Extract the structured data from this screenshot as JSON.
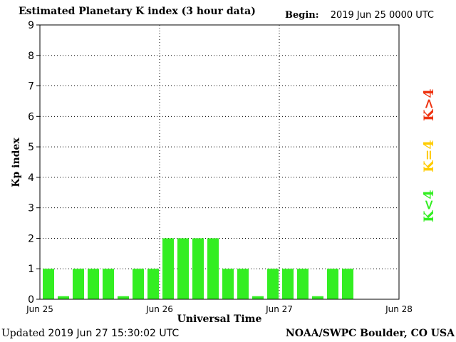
{
  "header": {
    "title": "Estimated Planetary K index (3 hour data)",
    "begin_label": "Begin:",
    "begin_value": "2019 Jun 25 0000 UTC"
  },
  "footer": {
    "updated_label": "Updated",
    "updated_value": "2019 Jun 27 15:30:02 UTC",
    "credit": "NOAA/SWPC Boulder, CO USA"
  },
  "legend": {
    "items": [
      {
        "label": "K<4",
        "color": "#33ee22"
      },
      {
        "label": "K=4",
        "color": "#ffcc00"
      },
      {
        "label": "K>4",
        "color": "#ee3311"
      }
    ]
  },
  "chart_data": {
    "type": "bar",
    "title": "Estimated Planetary K index (3 hour data)",
    "xlabel": "Universal Time",
    "ylabel": "Kp index",
    "ylim": [
      0,
      9
    ],
    "yticks": [
      "0",
      "1",
      "2",
      "3",
      "4",
      "5",
      "6",
      "7",
      "8",
      "9"
    ],
    "xticks": [
      "Jun 25",
      "Jun 26",
      "Jun 27",
      "Jun 28"
    ],
    "slots_per_day": 8,
    "total_slots": 24,
    "grid": true,
    "values": [
      1,
      0,
      1,
      1,
      1,
      0,
      1,
      1,
      2,
      2,
      2,
      2,
      1,
      1,
      0,
      1,
      1,
      1,
      0,
      1,
      1
    ],
    "bar_color": "#33ee22"
  }
}
